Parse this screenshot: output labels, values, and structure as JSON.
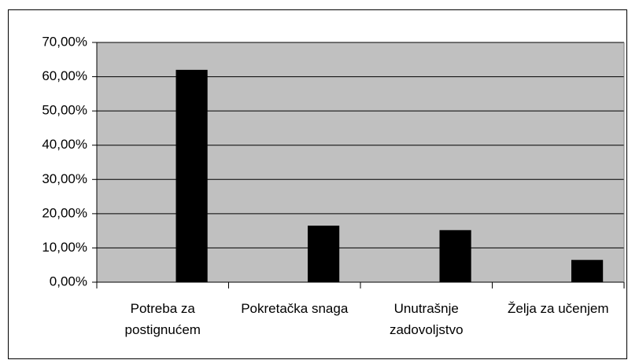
{
  "chart_data": {
    "type": "bar",
    "categories": [
      "Potreba za postignućem",
      "Pokretačka snaga",
      "Unutrašnje zadovoljstvo",
      "Želja za učenjem"
    ],
    "values": [
      62,
      16.5,
      15.2,
      6.5
    ],
    "color": "#000000",
    "plot_background": "#c0c0c0",
    "ylim": [
      0,
      70
    ],
    "yticks": [
      {
        "value": 0,
        "label": "0,00%"
      },
      {
        "value": 10,
        "label": "10,00%"
      },
      {
        "value": 20,
        "label": "20,00%"
      },
      {
        "value": 30,
        "label": "30,00%"
      },
      {
        "value": 40,
        "label": "40,00%"
      },
      {
        "value": 50,
        "label": "50,00%"
      },
      {
        "value": 60,
        "label": "60,00%"
      },
      {
        "value": 70,
        "label": "70,00%"
      }
    ],
    "grid": true
  }
}
